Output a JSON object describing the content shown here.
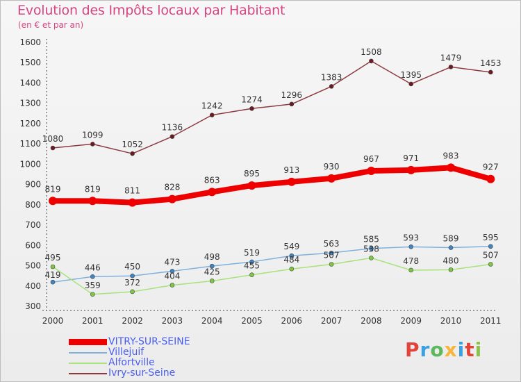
{
  "title": "Evolution des Impôts locaux par Habitant",
  "subtitle": "(en € et par an)",
  "brand": {
    "letters": [
      "P",
      "r",
      "o",
      "x",
      "i",
      "t",
      "i"
    ],
    "colors": [
      "#e2443a",
      "#3aa0df",
      "#5cb85c",
      "#f7b53b",
      "#3aa0df",
      "#e2443a",
      "#8bc34a"
    ]
  },
  "chart_data": {
    "type": "line",
    "x": [
      "2000",
      "2001",
      "2002",
      "2003",
      "2004",
      "2005",
      "2006",
      "2007",
      "2008",
      "2009",
      "2010",
      "2011"
    ],
    "ylim": [
      300,
      1600
    ],
    "yticks": [
      "300",
      "400",
      "500",
      "600",
      "700",
      "800",
      "900",
      "1000",
      "1100",
      "1200",
      "1300",
      "1400",
      "1500",
      "1600"
    ],
    "grid": false,
    "legend_position": "bottom-left",
    "series": [
      {
        "name": "VITRY-SUR-SEINE",
        "color": "#ee0000",
        "line_color": "#ee0000",
        "width": 8,
        "marker_r": 6,
        "values": [
          819,
          819,
          811,
          828,
          863,
          895,
          913,
          930,
          967,
          971,
          983,
          927
        ],
        "labels": [
          "819",
          "819",
          "811",
          "828",
          "863",
          "895",
          "913",
          "930",
          "967",
          "971",
          "983",
          "927"
        ]
      },
      {
        "name": "Villejuif",
        "color": "#3f86c4",
        "line_color": "#7fb0dc",
        "width": 1.5,
        "marker_r": 3,
        "values": [
          419,
          446,
          450,
          473,
          498,
          519,
          549,
          563,
          585,
          593,
          589,
          595
        ],
        "labels": [
          "419",
          "446",
          "450",
          "473",
          "498",
          "519",
          "549",
          "563",
          "585",
          "593",
          "589",
          "595"
        ]
      },
      {
        "name": "Alfortville",
        "color": "#7ec843",
        "line_color": "#a7e27a",
        "width": 1.5,
        "marker_r": 3,
        "values": [
          495,
          359,
          372,
          404,
          425,
          455,
          484,
          507,
          538,
          478,
          480,
          507
        ],
        "labels": [
          "495",
          "359",
          "372",
          "404",
          "425",
          "455",
          "484",
          "507",
          "538",
          "478",
          "480",
          "507"
        ]
      },
      {
        "name": "Ivry-sur-Seine",
        "color": "#6b1a20",
        "line_color": "#8c3a40",
        "width": 1.5,
        "marker_r": 3,
        "values": [
          1080,
          1099,
          1052,
          1136,
          1242,
          1274,
          1296,
          1383,
          1508,
          1395,
          1479,
          1453
        ],
        "labels": [
          "1080",
          "1099",
          "1052",
          "1136",
          "1242",
          "1274",
          "1296",
          "1383",
          "1508",
          "1395",
          "1479",
          "1453"
        ]
      }
    ]
  }
}
